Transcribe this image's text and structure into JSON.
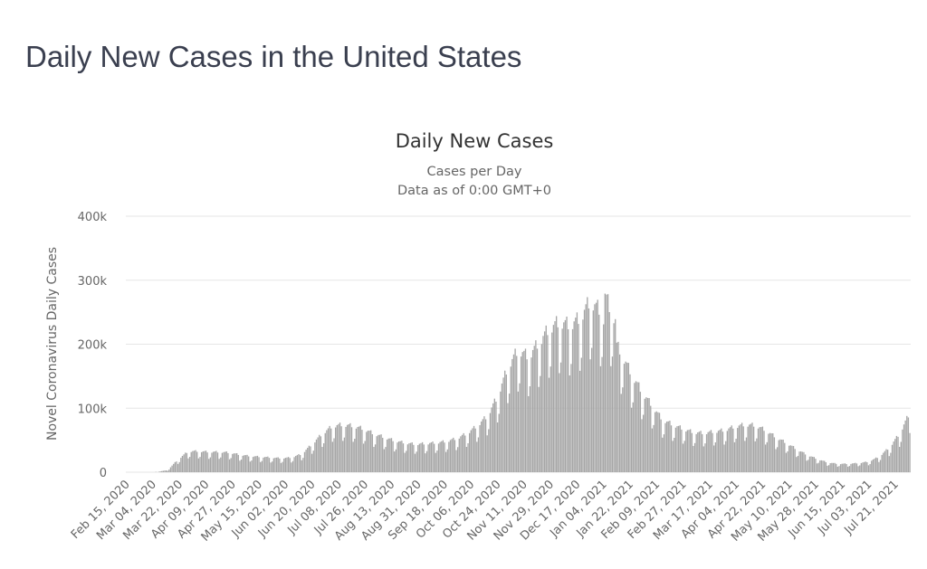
{
  "page": {
    "heading": "Daily New Cases in the United States"
  },
  "chart_data": {
    "type": "bar",
    "title": "Daily New Cases",
    "subtitle_lines": [
      "Cases per Day",
      "Data as of 0:00 GMT+0"
    ],
    "ylabel": "Novel Coronavirus Daily Cases",
    "ylim": [
      0,
      400000
    ],
    "yticks": [
      0,
      100000,
      200000,
      300000,
      400000
    ],
    "ytick_labels": [
      "0",
      "100k",
      "200k",
      "300k",
      "400k"
    ],
    "grid": true,
    "legend": "none",
    "bar_color": "#a6a6a6",
    "x_start": "2020-02-15",
    "x_end": "2021-07-31",
    "x_tick_labels": [
      "Feb 15, 2020",
      "Mar 04, 2020",
      "Mar 22, 2020",
      "Apr 09, 2020",
      "Apr 27, 2020",
      "May 15, 2020",
      "Jun 02, 2020",
      "Jun 20, 2020",
      "Jul 08, 2020",
      "Jul 26, 2020",
      "Aug 13, 2020",
      "Aug 31, 2020",
      "Sep 18, 2020",
      "Oct 06, 2020",
      "Oct 24, 2020",
      "Nov 11, 2020",
      "Nov 29, 2020",
      "Dec 17, 2020",
      "Jan 04, 2021",
      "Jan 22, 2021",
      "Feb 09, 2021",
      "Feb 27, 2021",
      "Mar 17, 2021",
      "Apr 04, 2021",
      "Apr 22, 2021",
      "May 10, 2021",
      "May 28, 2021",
      "Jun 15, 2021",
      "Jul 03, 2021",
      "Jul 21, 2021"
    ],
    "weekly_anchor_values": [
      0,
      0,
      0,
      500,
      3000,
      18000,
      30000,
      30000,
      29000,
      29000,
      28000,
      25000,
      23000,
      22000,
      21000,
      20000,
      21000,
      26000,
      40000,
      55000,
      66000,
      68000,
      66000,
      62000,
      55000,
      50000,
      45000,
      42000,
      40000,
      41000,
      42000,
      44000,
      48000,
      55000,
      66000,
      80000,
      108000,
      150000,
      175000,
      165000,
      185000,
      205000,
      215000,
      210000,
      220000,
      245000,
      230000,
      195000,
      170000,
      140000,
      115000,
      95000,
      75000,
      68000,
      62000,
      57000,
      56000,
      58000,
      60000,
      65000,
      68000,
      67000,
      60000,
      50000,
      42000,
      33000,
      25000,
      19000,
      14000,
      12000,
      12000,
      13000,
      15000,
      22000,
      35000,
      55000,
      85000,
      110000
    ]
  }
}
